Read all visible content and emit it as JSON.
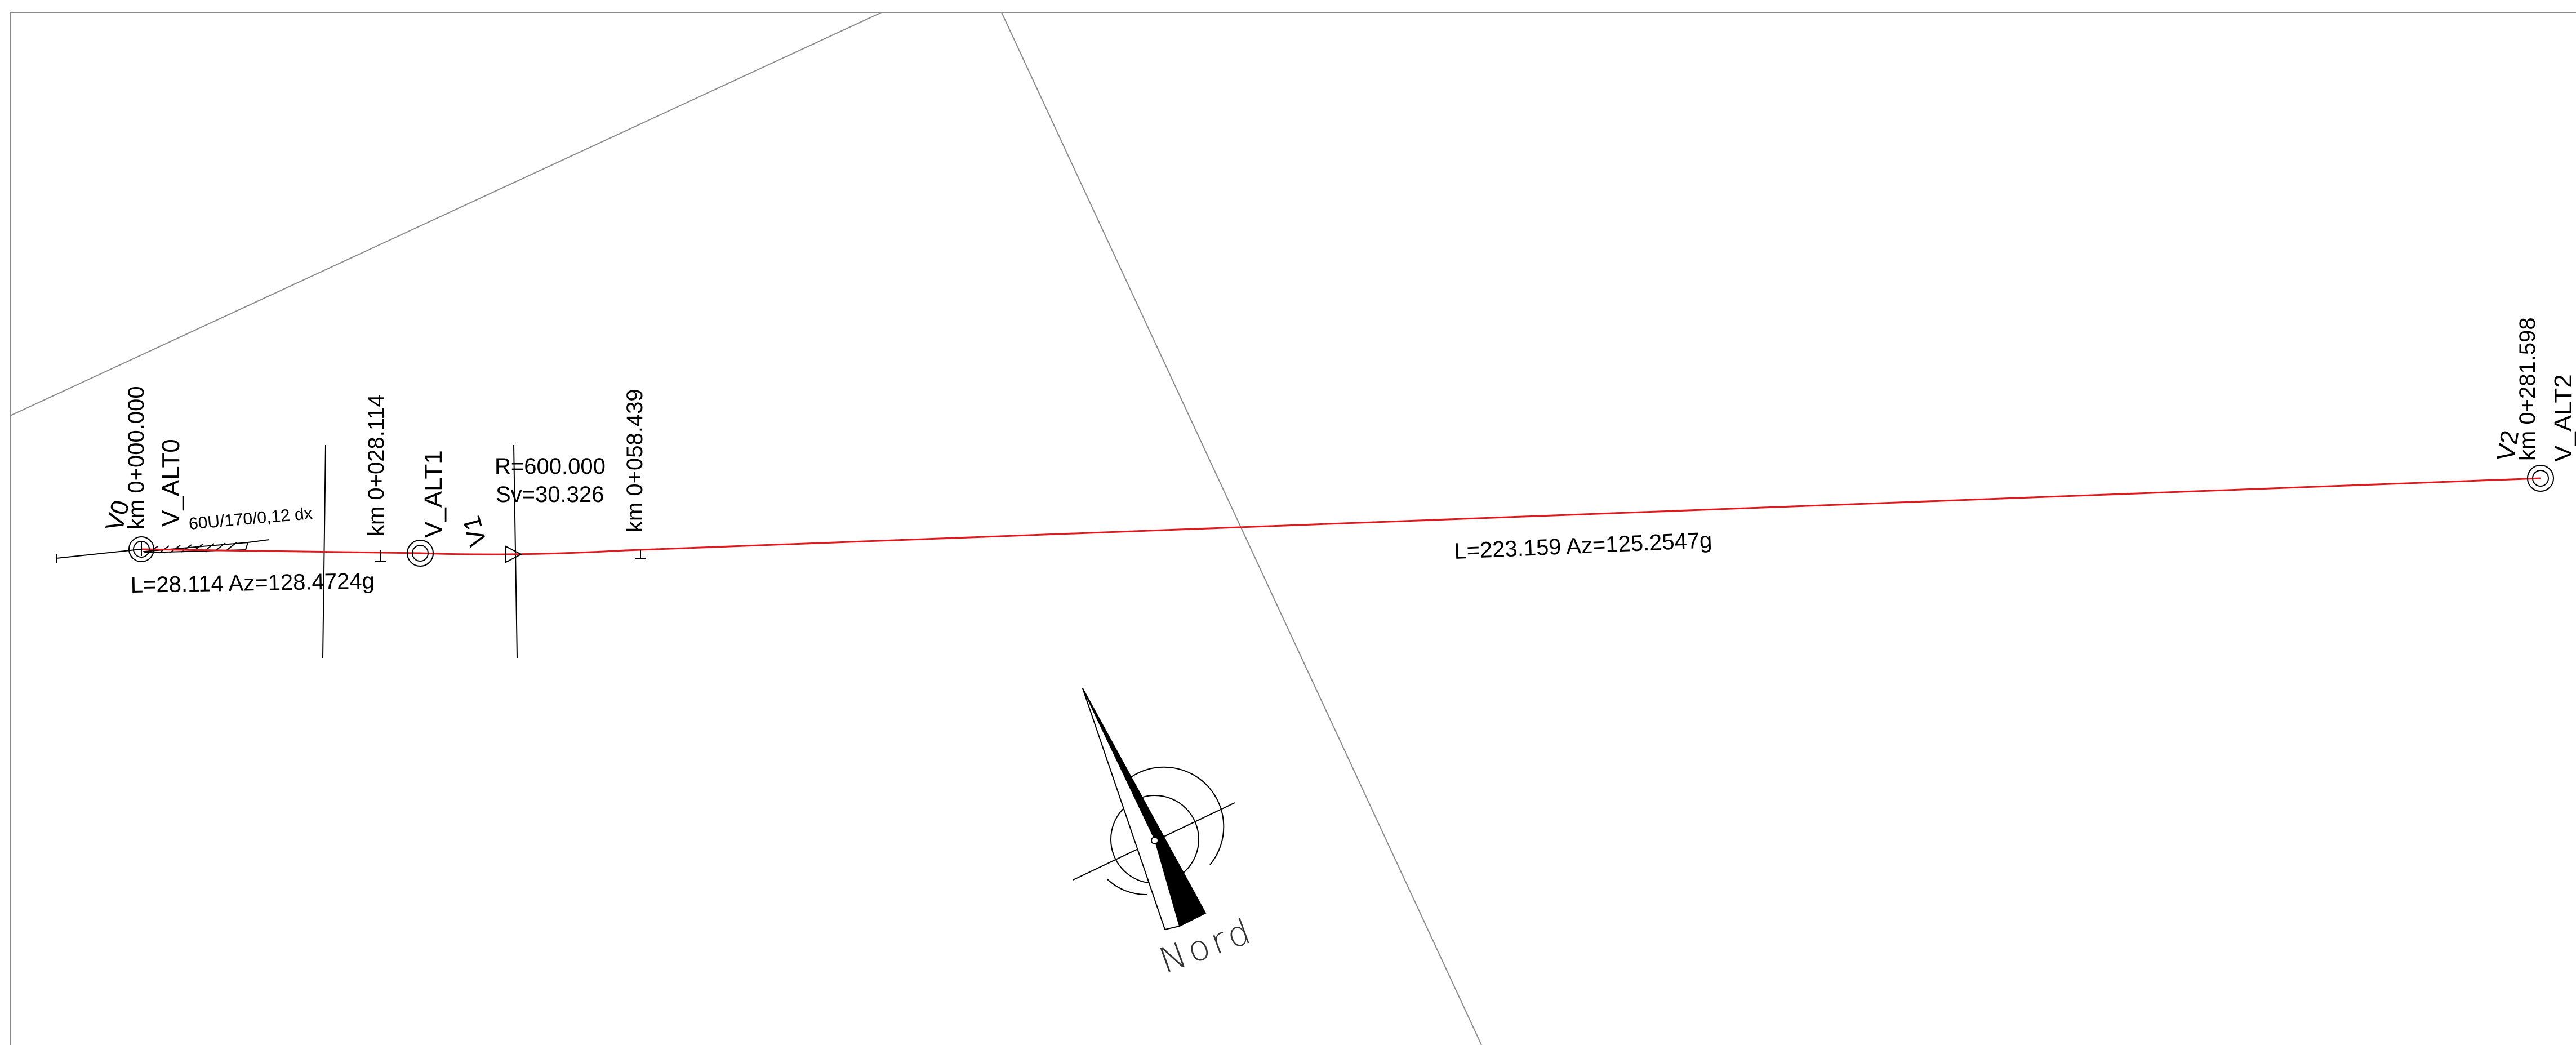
{
  "plan": {
    "alignment_color": "#e0191f",
    "vertices": {
      "v0": {
        "name": "V_ALT0",
        "number": "V0",
        "chainage": "km 0+000.000"
      },
      "v1": {
        "name": "V_ALT1",
        "number": "V1",
        "chainage": "km 0+028.114"
      },
      "v1_end": {
        "chainage": "km 0+058.439"
      },
      "v2": {
        "name": "V_ALT2",
        "number": "V2",
        "chainage": "km 0+281.598"
      }
    },
    "curve": {
      "radius": "R=600.000",
      "tangent": "Sv=30.326"
    },
    "segments": [
      {
        "label": "L=28.114 Az=128.4724g"
      },
      {
        "label": "L=223.159 Az=125.2547g"
      }
    ],
    "annotation": "60U/170/0,12 dx",
    "north_arrow": {
      "label": "Nord",
      "icon": "north-arrow-icon"
    }
  }
}
